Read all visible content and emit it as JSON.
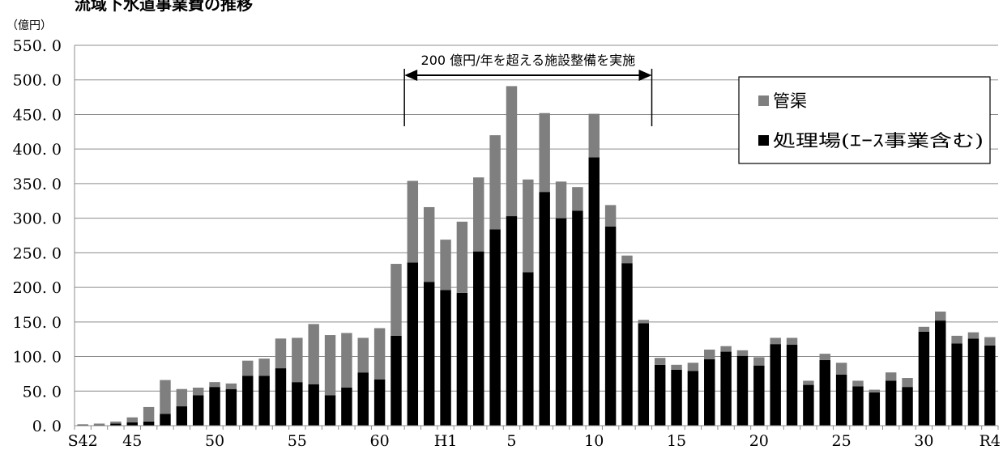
{
  "chart_data": {
    "type": "bar",
    "stacked": true,
    "title": "流域下水道事業費の推移",
    "unit_label": "（億円）",
    "ylim": [
      0,
      550
    ],
    "ytick_values": [
      0,
      50,
      100,
      150,
      200,
      250,
      300,
      350,
      400,
      450,
      500,
      550
    ],
    "ytick_labels": [
      "0. 0",
      "50. 0",
      "100. 0",
      "150. 0",
      "200. 0",
      "250. 0",
      "300. 0",
      "350. 0",
      "400. 0",
      "450. 0",
      "500. 0",
      "550. 0"
    ],
    "categories": [
      "S42",
      "S43",
      "S44",
      "S45",
      "S46",
      "S47",
      "S48",
      "S49",
      "S50",
      "S51",
      "S52",
      "S53",
      "S54",
      "S55",
      "S56",
      "S57",
      "S58",
      "S59",
      "S60",
      "S61",
      "S62",
      "S63",
      "H1",
      "H2",
      "H3",
      "H4",
      "H5",
      "H6",
      "H7",
      "H8",
      "H9",
      "H10",
      "H11",
      "H12",
      "H13",
      "H14",
      "H15",
      "H16",
      "H17",
      "H18",
      "H19",
      "H20",
      "H21",
      "H22",
      "H23",
      "H24",
      "H25",
      "H26",
      "H27",
      "H28",
      "H29",
      "H30",
      "R1",
      "R2",
      "R3",
      "R4"
    ],
    "xtick_labels": [
      {
        "index": 0,
        "label": "S42"
      },
      {
        "index": 3,
        "label": "45"
      },
      {
        "index": 8,
        "label": "50"
      },
      {
        "index": 13,
        "label": "55"
      },
      {
        "index": 18,
        "label": "60"
      },
      {
        "index": 22,
        "label": "H1"
      },
      {
        "index": 26,
        "label": "5"
      },
      {
        "index": 31,
        "label": "10"
      },
      {
        "index": 36,
        "label": "15"
      },
      {
        "index": 41,
        "label": "20"
      },
      {
        "index": 46,
        "label": "25"
      },
      {
        "index": 51,
        "label": "30"
      },
      {
        "index": 55,
        "label": "R4"
      }
    ],
    "series": [
      {
        "name": "処理場(ｴｰｽ事業含む)",
        "color": "#000000",
        "values": [
          1,
          1,
          3,
          5,
          6,
          17,
          28,
          44,
          56,
          53,
          72,
          72,
          83,
          63,
          60,
          44,
          55,
          77,
          67,
          130,
          236,
          208,
          196,
          192,
          252,
          284,
          303,
          222,
          338,
          300,
          311,
          388,
          288,
          235,
          148,
          88,
          81,
          79,
          96,
          107,
          101,
          87,
          118,
          117,
          59,
          95,
          74,
          57,
          48,
          65,
          56,
          136,
          152,
          119,
          126,
          116
        ]
      },
      {
        "name": "管渠",
        "color": "#7f7f7f",
        "values": [
          1,
          2,
          3,
          7,
          21,
          49,
          25,
          11,
          7,
          8,
          22,
          25,
          43,
          64,
          87,
          87,
          79,
          50,
          74,
          104,
          118,
          108,
          73,
          103,
          107,
          136,
          188,
          134,
          114,
          53,
          34,
          63,
          31,
          11,
          5,
          10,
          7,
          12,
          14,
          8,
          8,
          12,
          9,
          10,
          6,
          9,
          17,
          8,
          4,
          12,
          13,
          7,
          13,
          11,
          9,
          12
        ]
      }
    ],
    "legend": {
      "position": "top-right",
      "items": [
        "管渠",
        "処理場(ｴｰｽ事業含む)"
      ]
    },
    "annotation": {
      "text": "200 億円/年を超える施設整備を実施",
      "from_category": "S62",
      "to_category": "H14"
    },
    "grid": "horizontal"
  }
}
